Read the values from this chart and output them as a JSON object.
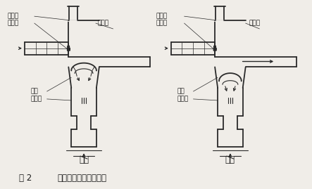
{
  "title_left": "图 2",
  "title_right": "脉冲阀结构和工作原理",
  "left_label": "关闭",
  "right_label": "开启",
  "label_maichongfa": "脉冲阀",
  "label_diancifa": "电磁阀",
  "label_shuchuguan": "输出管",
  "label_mopian": "膜片",
  "label_jieliukong": "节流孔",
  "bg_color": "#f0ede8",
  "line_color": "#2a2a2a",
  "text_color": "#1a1a1a",
  "fig_width": 4.43,
  "fig_height": 2.69,
  "dpi": 100
}
